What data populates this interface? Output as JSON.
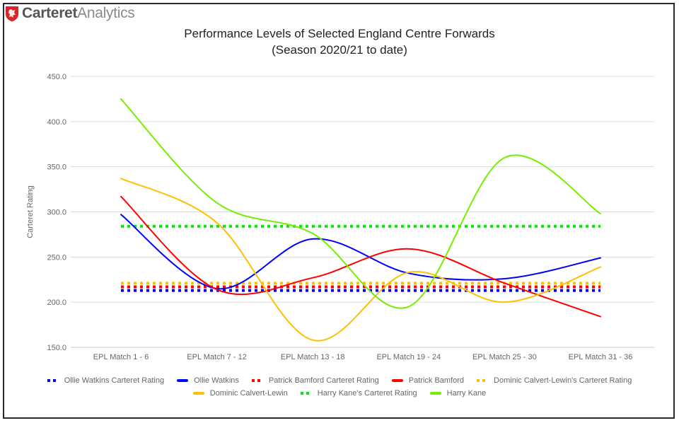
{
  "brand": {
    "name_bold": "Carteret",
    "name_light": "Analytics",
    "logo_icon": "red-shield-lion-icon",
    "logo_color": "#d9262c"
  },
  "chart_data": {
    "type": "line",
    "title": "Performance Levels of Selected England Centre Forwards",
    "subtitle": "(Season 2020/21 to date)",
    "xlabel": "",
    "ylabel": "Carteret Rating",
    "ylim": [
      150,
      450
    ],
    "yticks": [
      "150.0",
      "200.0",
      "250.0",
      "300.0",
      "350.0",
      "400.0",
      "450.0"
    ],
    "ytick_values": [
      150,
      200,
      250,
      300,
      350,
      400,
      450
    ],
    "grid": true,
    "smooth": true,
    "legend_position": "bottom",
    "categories": [
      "EPL Match 1 - 6",
      "EPL Match 7 - 12",
      "EPL Match 13 - 18",
      "EPL Match 19 - 24",
      "EPL Match 25 - 30",
      "EPL Match 31 - 36"
    ],
    "series": [
      {
        "name": "Ollie Watkins Carteret Rating",
        "style": "dotted",
        "color": "#0000ff",
        "values": [
          213,
          213,
          213,
          213,
          213,
          213
        ]
      },
      {
        "name": "Ollie Watkins",
        "style": "solid",
        "color": "#0000ff",
        "values": [
          297,
          215,
          270,
          232,
          226,
          249
        ]
      },
      {
        "name": "Patrick Bamford Carteret Rating",
        "style": "dotted",
        "color": "#ff0000",
        "values": [
          217,
          217,
          217,
          217,
          217,
          217
        ]
      },
      {
        "name": "Patrick Bamford",
        "style": "solid",
        "color": "#ff0000",
        "values": [
          317,
          214,
          227,
          259,
          221,
          184
        ]
      },
      {
        "name": "Dominic Calvert-Lewin's Carteret Rating",
        "style": "dotted",
        "color": "#ffc000",
        "values": [
          221,
          221,
          221,
          221,
          221,
          221
        ]
      },
      {
        "name": "Dominic Calvert-Lewin",
        "style": "solid",
        "color": "#ffc000",
        "values": [
          337,
          288,
          158,
          233,
          200,
          239
        ]
      },
      {
        "name": "Harry Kane's Carteret Rating",
        "style": "dotted",
        "color": "#00ee00",
        "values": [
          284,
          284,
          284,
          284,
          284,
          284
        ]
      },
      {
        "name": "Harry Kane",
        "style": "solid",
        "color": "#76ee00",
        "values": [
          425,
          310,
          276,
          195,
          360,
          298
        ]
      }
    ]
  }
}
